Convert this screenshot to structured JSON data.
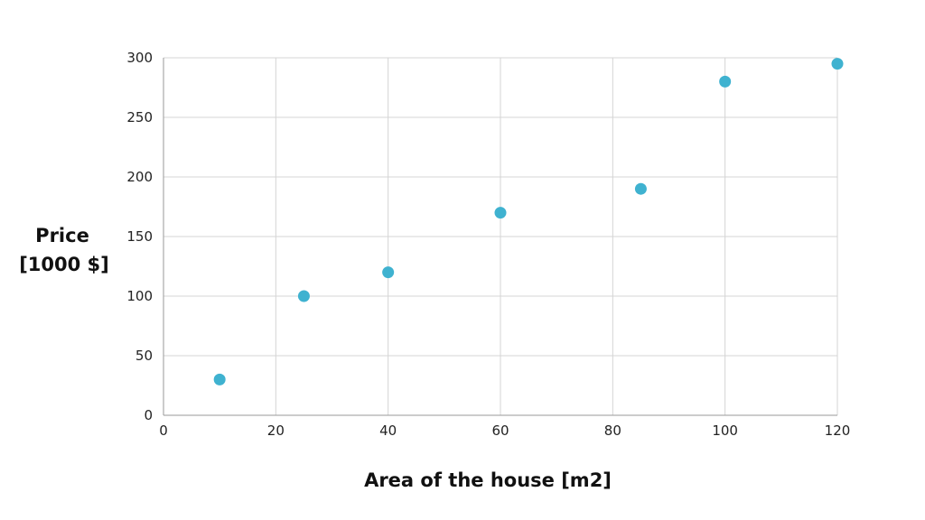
{
  "chart_data": {
    "type": "scatter",
    "title": "",
    "xlabel": "Area of the house [m2]",
    "ylabel_lines": [
      "Price",
      "[1000 $]"
    ],
    "xlim": [
      0,
      120
    ],
    "ylim": [
      0,
      300
    ],
    "xticks": [
      0,
      20,
      40,
      60,
      80,
      100,
      120
    ],
    "yticks": [
      0,
      50,
      100,
      150,
      200,
      250,
      300
    ],
    "grid": true,
    "legend": "none",
    "series": [
      {
        "color": "#3fb2d0",
        "points": [
          {
            "x": 10,
            "y": 30
          },
          {
            "x": 25,
            "y": 100
          },
          {
            "x": 40,
            "y": 120
          },
          {
            "x": 60,
            "y": 170
          },
          {
            "x": 85,
            "y": 190
          },
          {
            "x": 100,
            "y": 280
          },
          {
            "x": 120,
            "y": 295
          }
        ]
      }
    ]
  }
}
